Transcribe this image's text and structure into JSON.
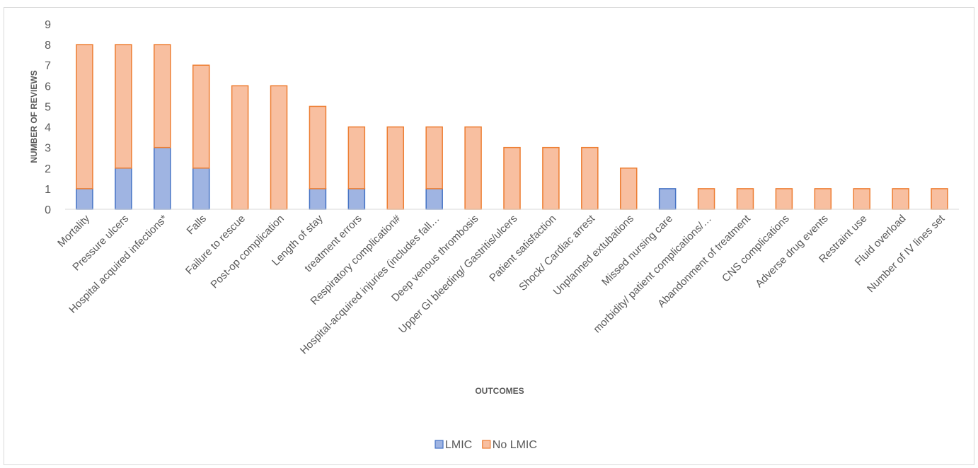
{
  "chart_data": {
    "type": "bar",
    "stacked": true,
    "title": "",
    "xlabel": "OUTCOMES",
    "ylabel": "NUMBER OF REVIEWS",
    "ylim": [
      0,
      9
    ],
    "grid": false,
    "legend_position": "bottom",
    "categories": [
      "Mortality",
      "Pressure ulcers",
      "Hospital acquired infections*",
      "Falls",
      "Failure to rescue",
      "Post-op complication",
      "Length of stay",
      "treatment errors",
      "Respiratory complication#",
      "Hospital-acquired injuries (includes fall…",
      "Deep venous thrombosis",
      "Upper GI bleeding/ Gastritis/ulcers",
      "Patient satisfaction",
      "Shock/ Cardiac arrest",
      "Unplanned extubations",
      "Missed nursing care",
      "morbidity/ patient complications/…",
      "Abandonment of treatment",
      "CNS complications",
      "Adverse drug events",
      "Restraint use",
      "Fluid overload",
      "Number of IV lines set"
    ],
    "series": [
      {
        "name": "LMIC",
        "color": "#9fb4e2",
        "stroke": "#4472c4",
        "values": [
          1,
          2,
          3,
          2,
          0,
          0,
          1,
          1,
          0,
          1,
          0,
          0,
          0,
          0,
          0,
          1,
          0,
          0,
          0,
          0,
          0,
          0,
          0
        ]
      },
      {
        "name": "No LMIC",
        "color": "#f8bfa0",
        "stroke": "#ed7d31",
        "values": [
          7,
          6,
          5,
          5,
          6,
          6,
          4,
          3,
          4,
          3,
          4,
          3,
          3,
          3,
          2,
          0,
          1,
          1,
          1,
          1,
          1,
          1,
          1
        ]
      }
    ]
  }
}
